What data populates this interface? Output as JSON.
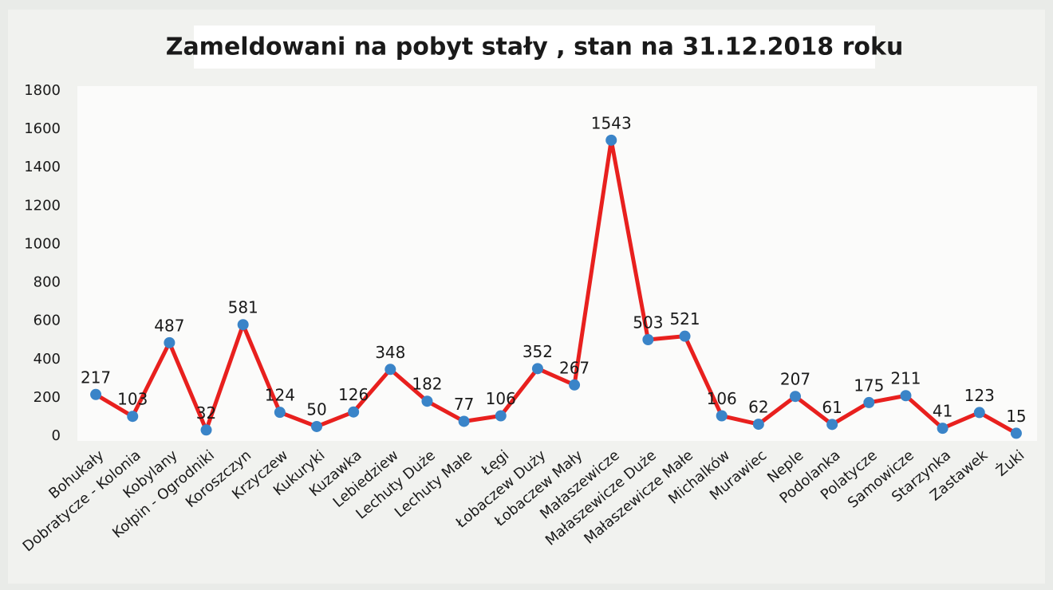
{
  "chart_data": {
    "type": "line",
    "title": "Zameldowani na pobyt stały , stan na 31.12.2018 roku",
    "categories": [
      "Bohukały",
      "Dobratycze - Kolonia",
      "Kobylany",
      "Kołpin - Ogrodniki",
      "Koroszczyn",
      "Krzyczew",
      "Kukuryki",
      "Kuzawka",
      "Lebiedziew",
      "Lechuty Duże",
      "Lechuty Małe",
      "Łęgi",
      "Łobaczew Duży",
      "Łobaczew Mały",
      "Małaszewicze",
      "Małaszewicze Duże",
      "Małaszewicze Małe",
      "Michalków",
      "Murawiec",
      "Neple",
      "Podolanka",
      "Polatycze",
      "Samowicze",
      "Starzynka",
      "Zastawek",
      "Żuki"
    ],
    "values": [
      217,
      103,
      487,
      32,
      581,
      124,
      50,
      126,
      348,
      182,
      77,
      106,
      352,
      267,
      1543,
      503,
      521,
      106,
      62,
      207,
      61,
      175,
      211,
      41,
      123,
      15
    ],
    "color": "#e8201e",
    "marker_color": "#3a84c8",
    "ylim": [
      0,
      1800
    ],
    "yticks": [
      0,
      200,
      400,
      600,
      800,
      1000,
      1200,
      1400,
      1600,
      1800
    ],
    "grid": false
  }
}
